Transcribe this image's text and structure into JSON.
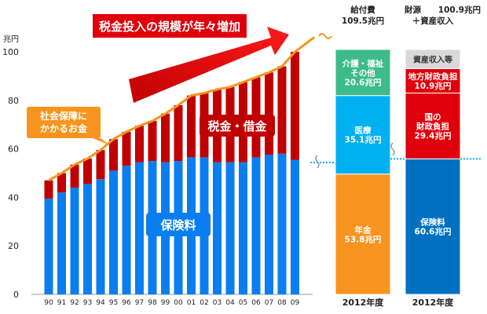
{
  "chart_data": [
    {
      "type": "bar",
      "title": "税金投入の規模が年々増加",
      "ylabel": "兆円",
      "ylim": [
        0,
        100
      ],
      "yticks": [
        0,
        20,
        40,
        60,
        80,
        100
      ],
      "categories": [
        "90",
        "91",
        "92",
        "93",
        "94",
        "95",
        "96",
        "97",
        "98",
        "99",
        "00",
        "01",
        "02",
        "03",
        "04",
        "05",
        "06",
        "07",
        "08",
        "09"
      ],
      "series": [
        {
          "name": "保険料",
          "values": [
            39.5,
            42,
            44,
            45.5,
            47.5,
            51,
            53,
            54.5,
            55,
            54.5,
            55,
            56.5,
            56.5,
            54.5,
            54.5,
            54.5,
            56.5,
            57.5,
            58,
            55.5
          ]
        },
        {
          "name": "税金・借金",
          "values": [
            7.5,
            8,
            9.5,
            10.5,
            12,
            13,
            14,
            15,
            16.5,
            20,
            23,
            25.5,
            26.5,
            30,
            31,
            33,
            33,
            34,
            36,
            44.5
          ]
        }
      ],
      "line": {
        "name": "社会保障にかかるお金",
        "values": [
          47,
          50,
          53.5,
          56,
          59.5,
          64,
          67,
          69.5,
          71.5,
          74.5,
          78,
          82,
          83,
          84.5,
          85.5,
          87.5,
          89.5,
          91.5,
          94,
          100
        ]
      },
      "grid": false
    },
    {
      "type": "bar",
      "stacked": true,
      "header": "給付費",
      "total": "109.5兆円",
      "category": "2012年度",
      "segments": [
        {
          "name": "年金",
          "value": 53.8,
          "label": "53.8兆円",
          "color": "#f7941d"
        },
        {
          "name": "医療",
          "value": 35.1,
          "label": "35.1兆円",
          "color": "#00b0f0"
        },
        {
          "name": "介護・福祉 その他",
          "value": 20.6,
          "label": "20.6兆円",
          "color": "#3dbb8a"
        }
      ]
    },
    {
      "type": "bar",
      "stacked": true,
      "header": "財源",
      "total": "100.9兆円",
      "subheader": "＋資産収入",
      "category": "2012年度",
      "segments": [
        {
          "name": "保険料",
          "value": 60.6,
          "label": "60.6兆円",
          "color": "#0070c0"
        },
        {
          "name": "国の 財政負担",
          "value": 29.4,
          "label": "29.4兆円",
          "color": "#e0000b"
        },
        {
          "name": "地方財政負担",
          "value": 10.9,
          "label": "10.9兆円",
          "color": "#e0000b"
        },
        {
          "name": "資産収入等",
          "value": 8.6,
          "label": "",
          "color": "#d9d9d9"
        }
      ]
    }
  ],
  "labels": {
    "blue_area": "保険料",
    "red_area": "税金・借金",
    "line_callout": "社会保障に\nかかるお金"
  },
  "colors": {
    "insurance_blue": "#0a7ef0",
    "tax_red": "#c00000",
    "line_orange": "#f7941d",
    "arrow_red": "#e0000b"
  }
}
